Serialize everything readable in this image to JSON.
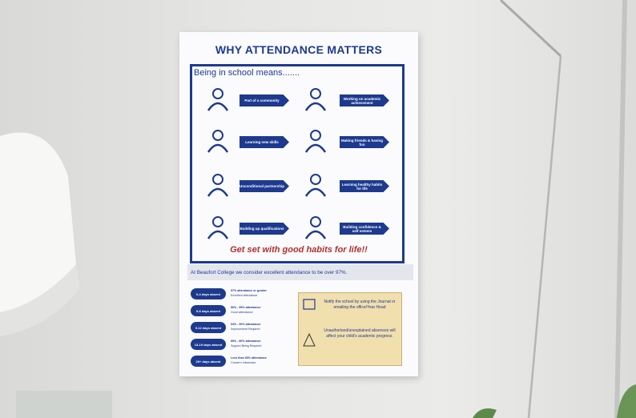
{
  "poster": {
    "title": "WHY ATTENDANCE MATTERS",
    "subtitle": "Being in school means.......",
    "benefits": [
      "Part of a community",
      "Working on academic achievement",
      "Learning new skills",
      "Making friends & having fun",
      "Unconditional partnership",
      "Learning healthy habits for life",
      "Building up qualifications",
      "Building confidence & self esteem"
    ],
    "tagline": "Get set with good habits for life!!",
    "statement": "At Beaufort College we consider excellent attendance to be over 97%.",
    "attendance_bands": [
      {
        "days": "0-4 days absent",
        "percent": "97% attendance or greater",
        "status": "Excellent attendance"
      },
      {
        "days": "5-8 days absent",
        "percent": "96% - 95% attendance",
        "status": "Good attendance"
      },
      {
        "days": "9-12 days absent",
        "percent": "94% - 90% attendance",
        "status": "Improvement Required"
      },
      {
        "days": "13-19 days absent",
        "percent": "89% - 80% attendance",
        "status": "Support Being Required"
      },
      {
        "days": "20+ days absent",
        "percent": "Less than 80% attendance",
        "status": "Concern: Absences"
      }
    ],
    "notes": [
      "Notify the school by using the Journal or emailing the office/Year Head",
      "Unauthorised/unexplained absences will affect your child's academic progress."
    ]
  }
}
